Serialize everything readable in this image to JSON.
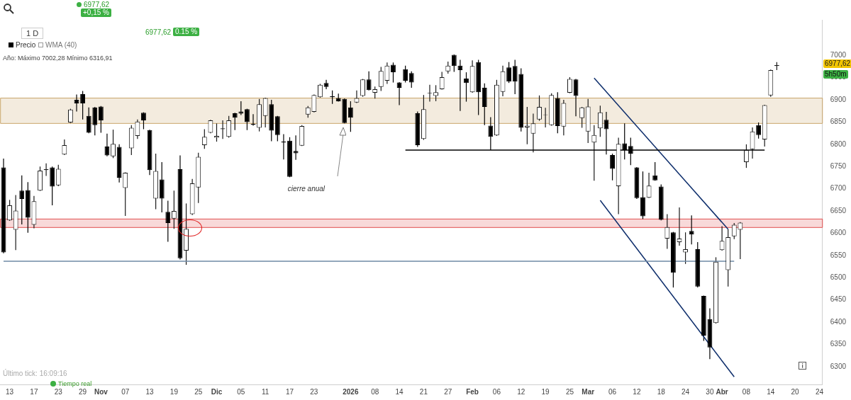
{
  "chart_data": {
    "type": "candlestick",
    "categories": [
      null,
      "13",
      null,
      null,
      null,
      "17",
      null,
      null,
      null,
      "23",
      null,
      null,
      null,
      "29",
      null,
      null,
      "Nov",
      null,
      null,
      null,
      "07",
      null,
      null,
      null,
      "13",
      null,
      null,
      null,
      "19",
      null,
      null,
      null,
      "25",
      null,
      null,
      "Dic",
      null,
      null,
      null,
      "05",
      null,
      null,
      null,
      "11",
      null,
      null,
      null,
      "17",
      null,
      null,
      null,
      "23",
      null,
      null,
      null,
      null,
      null,
      "2026",
      null,
      null,
      null,
      "08",
      null,
      null,
      null,
      "14",
      null,
      null,
      null,
      "21",
      null,
      null,
      null,
      "27",
      null,
      null,
      null,
      "Feb",
      null,
      null,
      null,
      "06",
      null,
      null,
      null,
      "12",
      null,
      null,
      null,
      "19",
      null,
      null,
      null,
      "25",
      null,
      null,
      "Mar",
      null,
      null,
      null,
      "06",
      null,
      null,
      null,
      "12",
      null,
      null,
      null,
      "18",
      null,
      null,
      null,
      "24",
      null,
      null,
      null,
      "30",
      null,
      "Abr",
      null,
      null,
      null,
      "08",
      null,
      null,
      null,
      "14",
      null,
      null,
      null,
      "20",
      null,
      null,
      null,
      "24"
    ],
    "ohlc": [
      [
        6748,
        6768,
        6555,
        6557
      ],
      [
        6629,
        6675,
        6628,
        6663
      ],
      [
        6608,
        6686,
        6562,
        6651
      ],
      [
        6696,
        6730,
        6620,
        6677
      ],
      [
        6697,
        6715,
        6601,
        6635
      ],
      [
        6619,
        6684,
        6611,
        6672
      ],
      [
        6696,
        6750,
        6695,
        6741
      ],
      [
        6742,
        6757,
        6729,
        6744
      ],
      [
        6748,
        6750,
        6663,
        6705
      ],
      [
        6708,
        6754,
        6706,
        6745
      ],
      [
        6777,
        6811,
        6776,
        6798
      ],
      [
        6849,
        6880,
        6848,
        6878
      ],
      [
        6900,
        6912,
        6874,
        6892
      ],
      [
        6913,
        6920,
        6856,
        6892
      ],
      [
        6864,
        6883,
        6825,
        6826
      ],
      [
        6883,
        6884,
        6820,
        6843
      ],
      [
        6885,
        6886,
        6826,
        6854
      ],
      [
        6795,
        6824,
        6773,
        6775
      ],
      [
        6773,
        6833,
        6769,
        6801
      ],
      [
        6794,
        6800,
        6714,
        6725
      ],
      [
        6702,
        6737,
        6639,
        6736
      ],
      [
        6791,
        6843,
        6776,
        6837
      ],
      [
        6819,
        6856,
        6812,
        6851
      ],
      [
        6871,
        6872,
        6834,
        6854
      ],
      [
        6832,
        6833,
        6731,
        6742
      ],
      [
        6678,
        6779,
        6654,
        6740
      ],
      [
        6721,
        6760,
        6647,
        6678
      ],
      [
        6648,
        6673,
        6581,
        6623
      ],
      [
        6633,
        6696,
        6610,
        6650
      ],
      [
        6744,
        6775,
        6541,
        6544
      ],
      [
        6561,
        6667,
        6529,
        6610
      ],
      [
        6643,
        6722,
        6641,
        6712
      ],
      [
        6703,
        6781,
        6668,
        6772
      ],
      [
        6798,
        6834,
        6790,
        6817
      ],
      [
        6826,
        6855,
        6825,
        6854
      ],
      [
        6815,
        6847,
        6806,
        6819
      ],
      [
        6834,
        6854,
        6812,
        6836
      ],
      [
        6817,
        6864,
        6815,
        6854
      ],
      [
        6870,
        6871,
        6832,
        6860
      ],
      [
        6874,
        6897,
        6866,
        6869
      ],
      [
        6879,
        6880,
        6832,
        6850
      ],
      [
        6846,
        6868,
        6842,
        6844
      ],
      [
        6837,
        6902,
        6829,
        6890
      ],
      [
        6864,
        6905,
        6838,
        6904
      ],
      [
        6890,
        6900,
        6807,
        6831
      ],
      [
        6863,
        6864,
        6807,
        6821
      ],
      [
        6806,
        6823,
        6766,
        6804
      ],
      [
        6808,
        6816,
        6726,
        6727
      ],
      [
        6785,
        6820,
        6765,
        6780
      ],
      [
        6797,
        6843,
        6796,
        6841
      ],
      [
        6867,
        6886,
        6860,
        6883
      ],
      [
        6873,
        6912,
        6872,
        6911
      ],
      [
        6906,
        6936,
        6905,
        6934
      ],
      [
        6938,
        6945,
        6924,
        6929
      ],
      [
        6908,
        6921,
        6891,
        6906
      ],
      [
        6904,
        6914,
        6896,
        6897
      ],
      [
        6902,
        6903,
        6847,
        6848
      ],
      [
        6883,
        6897,
        6828,
        6860
      ],
      [
        6894,
        6921,
        6893,
        6904
      ],
      [
        6909,
        6947,
        6907,
        6946
      ],
      [
        6946,
        6964,
        6921,
        6922
      ],
      [
        6916,
        6930,
        6903,
        6924
      ],
      [
        6929,
        6974,
        6920,
        6965
      ],
      [
        6943,
        6984,
        6936,
        6977
      ],
      [
        6979,
        6984,
        6939,
        6962
      ],
      [
        6939,
        6940,
        6888,
        6927
      ],
      [
        6969,
        6977,
        6939,
        6943
      ],
      [
        6960,
        6964,
        6927,
        6939
      ],
      [
        6870,
        6874,
        6794,
        6798
      ],
      [
        6812,
        6911,
        6810,
        6879
      ],
      [
        6915,
        6934,
        6896,
        6916
      ],
      [
        6909,
        6933,
        6897,
        6917
      ],
      [
        6924,
        6963,
        6923,
        6951
      ],
      [
        6964,
        6986,
        6959,
        6977
      ],
      [
        7001,
        7002,
        6963,
        6976
      ],
      [
        6977,
        6990,
        6875,
        6967
      ],
      [
        6948,
        6962,
        6896,
        6938
      ],
      [
        6917,
        6989,
        6916,
        6976
      ],
      [
        6985,
        6990,
        6866,
        6917
      ],
      [
        6927,
        6937,
        6843,
        6884
      ],
      [
        6842,
        6861,
        6787,
        6817
      ],
      [
        6820,
        6945,
        6819,
        6934
      ],
      [
        6918,
        6977,
        6908,
        6964
      ],
      [
        6973,
        6985,
        6938,
        6941
      ],
      [
        6976,
        6990,
        6913,
        6941
      ],
      [
        6958,
        6971,
        6829,
        6837
      ],
      [
        6838,
        6884,
        6800,
        6842
      ],
      [
        6824,
        6869,
        6782,
        6847
      ],
      [
        6856,
        6910,
        6853,
        6884
      ],
      [
        6866,
        6882,
        6838,
        6867
      ],
      [
        6843,
        6915,
        6842,
        6911
      ],
      [
        6904,
        6917,
        6825,
        6841
      ],
      [
        6840,
        6900,
        6820,
        6893
      ],
      [
        6916,
        6951,
        6915,
        6947
      ],
      [
        6946,
        6947,
        6863,
        6909
      ],
      [
        6859,
        6884,
        6837,
        6883
      ],
      [
        6829,
        6902,
        6803,
        6885
      ],
      [
        6804,
        6843,
        6718,
        6821
      ],
      [
        6836,
        6887,
        6817,
        6872
      ],
      [
        6855,
        6873,
        6777,
        6834
      ],
      [
        6776,
        6779,
        6719,
        6745
      ],
      [
        6706,
        6815,
        6643,
        6801
      ],
      [
        6802,
        6847,
        6766,
        6787
      ],
      [
        6796,
        6815,
        6753,
        6779
      ],
      [
        6748,
        6749,
        6677,
        6679
      ],
      [
        6681,
        6739,
        6632,
        6638
      ],
      [
        6680,
        6736,
        6679,
        6707
      ],
      [
        6730,
        6760,
        6718,
        6719
      ],
      [
        6705,
        6710,
        6629,
        6630
      ],
      [
        6588,
        6643,
        6565,
        6614
      ],
      [
        6602,
        6603,
        6478,
        6511
      ],
      [
        6580,
        6658,
        6572,
        6588
      ],
      [
        6557,
        6602,
        6531,
        6564
      ],
      [
        6605,
        6640,
        6575,
        6597
      ],
      [
        6564,
        6580,
        6478,
        6480
      ],
      [
        6459,
        6460,
        6358,
        6370
      ],
      [
        6407,
        6431,
        6317,
        6343
      ],
      [
        6398,
        6546,
        6397,
        6536
      ],
      [
        6562,
        6616,
        6561,
        6583
      ],
      [
        6517,
        6609,
        6480,
        6591
      ],
      [
        6593,
        6623,
        6587,
        6619
      ],
      [
        6608,
        6625,
        6542,
        6624
      ],
      [
        6760,
        6800,
        6747,
        6787
      ],
      [
        6789,
        6838,
        6768,
        6829
      ],
      [
        6843,
        6849,
        6813,
        6821
      ],
      [
        6811,
        6889,
        6795,
        6888
      ],
      [
        6910,
        6968,
        6907,
        6967
      ],
      [
        6976,
        6985,
        6967,
        6978
      ],
      null,
      null,
      null,
      null,
      null,
      null,
      null
    ],
    "series": [
      {
        "type": "line",
        "color": "#6f8aa6",
        "values": [
          6537,
          null,
          null,
          null,
          null,
          null,
          null,
          null,
          null,
          null,
          null,
          null,
          null,
          null,
          null,
          null,
          null,
          null,
          null,
          null,
          null,
          null,
          null,
          null,
          null,
          null,
          null,
          null,
          null,
          null,
          null,
          null,
          null,
          null,
          null,
          null,
          null,
          null,
          null,
          null,
          null,
          null,
          null,
          null,
          null,
          null,
          null,
          null,
          null,
          null,
          null,
          null,
          null,
          null,
          null,
          null,
          null,
          null,
          null,
          null,
          null,
          null,
          null,
          null,
          null,
          null,
          null,
          null,
          null,
          null,
          null,
          null,
          null,
          null,
          null,
          null,
          null,
          null,
          null,
          null,
          null,
          null,
          null,
          null,
          null,
          null,
          null,
          null,
          null,
          null,
          null,
          null,
          null,
          null,
          null,
          null,
          null,
          null,
          null,
          null,
          null,
          null,
          null,
          null,
          null,
          null,
          null,
          null,
          null,
          null,
          null,
          null,
          null,
          null,
          null,
          null,
          null,
          null,
          null,
          null,
          6537,
          null,
          null,
          null,
          null,
          null,
          null,
          null,
          null,
          null,
          null,
          null,
          null,
          null,
          null
        ]
      },
      {
        "type": "line",
        "color": "#000000",
        "values": [
          null,
          null,
          null,
          null,
          null,
          null,
          null,
          null,
          null,
          null,
          null,
          null,
          null,
          null,
          null,
          null,
          null,
          null,
          null,
          null,
          null,
          null,
          null,
          null,
          null,
          null,
          null,
          null,
          null,
          null,
          null,
          null,
          null,
          null,
          null,
          null,
          null,
          null,
          null,
          null,
          null,
          null,
          null,
          null,
          null,
          null,
          null,
          null,
          null,
          null,
          null,
          null,
          null,
          null,
          null,
          null,
          null,
          null,
          null,
          null,
          null,
          null,
          null,
          null,
          null,
          null,
          6787,
          null,
          null,
          null,
          null,
          null,
          null,
          null,
          null,
          null,
          null,
          null,
          null,
          null,
          null,
          null,
          null,
          null,
          null,
          null,
          null,
          null,
          null,
          null,
          null,
          null,
          null,
          null,
          null,
          null,
          null,
          null,
          null,
          null,
          null,
          null,
          null,
          null,
          null,
          null,
          null,
          null,
          null,
          null,
          null,
          null,
          null,
          null,
          null,
          null,
          null,
          null,
          null,
          null,
          null,
          null,
          null,
          null,
          null,
          6787,
          null,
          null,
          null,
          null,
          null,
          null,
          null,
          null,
          null
        ]
      },
      {
        "type": "line",
        "color": "#0d2d6b",
        "values": [
          null,
          null,
          null,
          null,
          null,
          null,
          null,
          null,
          null,
          null,
          null,
          null,
          null,
          null,
          null,
          null,
          null,
          null,
          null,
          null,
          null,
          null,
          null,
          null,
          null,
          null,
          null,
          null,
          null,
          null,
          null,
          null,
          null,
          null,
          null,
          null,
          null,
          null,
          null,
          null,
          null,
          null,
          null,
          null,
          null,
          null,
          null,
          null,
          null,
          null,
          null,
          null,
          null,
          null,
          null,
          null,
          null,
          null,
          null,
          null,
          null,
          null,
          null,
          null,
          null,
          null,
          null,
          null,
          null,
          null,
          null,
          null,
          null,
          null,
          null,
          null,
          null,
          null,
          null,
          null,
          null,
          null,
          null,
          null,
          null,
          null,
          null,
          null,
          null,
          null,
          null,
          null,
          null,
          null,
          null,
          null,
          null,
          6949,
          null,
          null,
          null,
          null,
          null,
          null,
          null,
          null,
          null,
          null,
          null,
          null,
          null,
          null,
          null,
          null,
          null,
          null,
          null,
          null,
          null,
          6609,
          null,
          null,
          null,
          null,
          null,
          null,
          null,
          null,
          null,
          null,
          null,
          null,
          null,
          null,
          null
        ]
      },
      {
        "type": "line",
        "color": "#0d2d6b",
        "values": [
          null,
          null,
          null,
          null,
          null,
          null,
          null,
          null,
          null,
          null,
          null,
          null,
          null,
          null,
          null,
          null,
          null,
          null,
          null,
          null,
          null,
          null,
          null,
          null,
          null,
          null,
          null,
          null,
          null,
          null,
          null,
          null,
          null,
          null,
          null,
          null,
          null,
          null,
          null,
          null,
          null,
          null,
          null,
          null,
          null,
          null,
          null,
          null,
          null,
          null,
          null,
          null,
          null,
          null,
          null,
          null,
          null,
          null,
          null,
          null,
          null,
          null,
          null,
          null,
          null,
          null,
          null,
          null,
          null,
          null,
          null,
          null,
          null,
          null,
          null,
          null,
          null,
          null,
          null,
          null,
          null,
          null,
          null,
          null,
          null,
          null,
          null,
          null,
          null,
          null,
          null,
          null,
          null,
          null,
          null,
          null,
          null,
          null,
          6674,
          null,
          null,
          null,
          null,
          null,
          null,
          null,
          null,
          null,
          null,
          null,
          null,
          null,
          null,
          null,
          null,
          null,
          null,
          null,
          null,
          null,
          6277,
          null,
          null,
          null,
          null,
          null,
          null,
          null,
          null,
          null,
          null,
          null,
          null,
          null,
          null
        ]
      }
    ],
    "bands": [
      {
        "axis": "y",
        "from": 6847,
        "to": 6904,
        "color": "#c9a66b"
      },
      {
        "axis": "y",
        "from": 6613,
        "to": 6632,
        "color": "#e05050"
      }
    ],
    "ylim": [
      6260,
      7080
    ],
    "yticks": [
      6300,
      6350,
      6400,
      6450,
      6500,
      6550,
      6600,
      6650,
      6700,
      6750,
      6800,
      6850,
      6900,
      6950,
      7000
    ],
    "annotations": [
      "+0,15 %",
      "6977,62",
      "1 D",
      "6977,62",
      "0.15 %",
      "Precio",
      "WMA (40)",
      "Año: Máximo 7002,28 Mínimo 6316,91",
      "cierre anual",
      "Último tick: 16:09:16",
      "Tiempo real",
      "6977,62",
      "5h50m"
    ]
  }
}
